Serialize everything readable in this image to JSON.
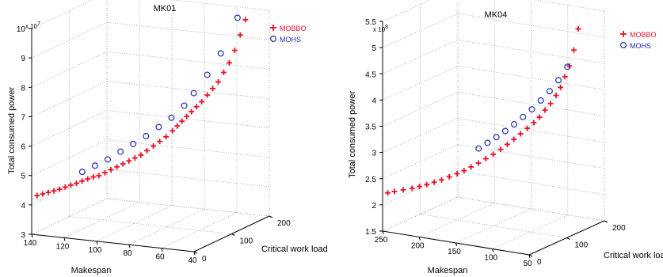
{
  "colors": {
    "mobbo": "#e8132b",
    "mohs": "#1f2ea8",
    "axis": "#000000",
    "grid": "#9a9a9a"
  },
  "chart_data": [
    {
      "type": "scatter",
      "title": "MK01",
      "xlabel": "Makespan",
      "ylabel": "Critical work load",
      "zlabel": "Total consumed power",
      "z_multiplier": "x 10",
      "z_exponent": "7",
      "xlim": [
        40,
        140
      ],
      "ylim": [
        0,
        200
      ],
      "zlim": [
        3,
        10
      ],
      "xticks": [
        "40",
        "60",
        "80",
        "100",
        "120",
        "140"
      ],
      "yticks": [
        "0",
        "100",
        "200"
      ],
      "zticks": [
        "3",
        "4",
        "5",
        "6",
        "7",
        "8",
        "9",
        "10"
      ],
      "grid": true,
      "legend_position": "top-right",
      "series": [
        {
          "name": "MOBBO",
          "marker": "plus",
          "color_key": "mobbo",
          "x": [
            42,
            44,
            46,
            48,
            50,
            52,
            54,
            56,
            58,
            60,
            62,
            64,
            66,
            68,
            70,
            73,
            76,
            79,
            82,
            85,
            88,
            91,
            94,
            97,
            100,
            103,
            106,
            109,
            112,
            115,
            118,
            121,
            124,
            127,
            130,
            133,
            136,
            139
          ],
          "y": [
            145,
            140,
            134,
            128,
            122,
            116,
            110,
            104,
            98,
            93,
            88,
            84,
            80,
            76,
            72,
            68,
            64,
            60,
            56,
            53,
            50,
            47,
            44,
            41,
            38,
            35,
            32,
            30,
            28,
            26,
            24,
            22,
            20,
            18,
            16,
            14,
            12,
            10
          ],
          "z": [
            10.0,
            9.5,
            9.0,
            8.6,
            8.3,
            8.0,
            7.8,
            7.6,
            7.4,
            7.25,
            7.1,
            6.95,
            6.8,
            6.65,
            6.5,
            6.3,
            6.15,
            6.0,
            5.85,
            5.7,
            5.6,
            5.5,
            5.4,
            5.3,
            5.2,
            5.1,
            5.0,
            4.95,
            4.88,
            4.8,
            4.72,
            4.65,
            4.58,
            4.5,
            4.44,
            4.38,
            4.32,
            4.26
          ]
        },
        {
          "name": "MOHS",
          "marker": "circle",
          "color_key": "mohs",
          "x": [
            48,
            56,
            62,
            68,
            72,
            78,
            84,
            90,
            96,
            102,
            108,
            114,
            120
          ],
          "y": [
            150,
            140,
            130,
            120,
            112,
            104,
            96,
            88,
            80,
            72,
            64,
            56,
            48
          ],
          "z": [
            10.0,
            8.8,
            8.1,
            7.5,
            7.1,
            6.7,
            6.4,
            6.1,
            5.85,
            5.6,
            5.35,
            5.15,
            4.95
          ]
        }
      ]
    },
    {
      "type": "scatter",
      "title": "MK04",
      "xlabel": "Makespan",
      "ylabel": "Critical work load",
      "zlabel": "Total consumed power",
      "z_multiplier": "x 10",
      "z_exponent": "8",
      "xlim": [
        50,
        250
      ],
      "ylim": [
        0,
        200
      ],
      "zlim": [
        1.5,
        5.5
      ],
      "xticks": [
        "50",
        "100",
        "150",
        "200",
        "250"
      ],
      "yticks": [
        "0",
        "100",
        "200"
      ],
      "zticks": [
        "1.5",
        "2",
        "2.5",
        "3",
        "3.5",
        "4",
        "4.5",
        "5",
        "5.5"
      ],
      "grid": true,
      "legend_position": "top-right",
      "series": [
        {
          "name": "MOBBO",
          "marker": "plus",
          "color_key": "mobbo",
          "x": [
            60,
            64,
            68,
            72,
            76,
            80,
            85,
            90,
            95,
            100,
            106,
            112,
            118,
            124,
            130,
            137,
            144,
            151,
            158,
            165,
            172,
            180,
            188,
            196,
            204,
            212,
            220,
            230,
            240,
            248
          ],
          "y": [
            150,
            146,
            142,
            138,
            134,
            130,
            125,
            120,
            115,
            110,
            104,
            98,
            92,
            86,
            80,
            74,
            68,
            62,
            56,
            51,
            46,
            41,
            36,
            32,
            28,
            24,
            20,
            16,
            12,
            10
          ],
          "z": [
            5.3,
            4.9,
            4.6,
            4.4,
            4.2,
            4.05,
            3.9,
            3.78,
            3.65,
            3.55,
            3.45,
            3.35,
            3.25,
            3.16,
            3.07,
            2.98,
            2.9,
            2.82,
            2.75,
            2.68,
            2.62,
            2.56,
            2.5,
            2.45,
            2.4,
            2.36,
            2.32,
            2.28,
            2.24,
            2.2
          ]
        },
        {
          "name": "MOHS",
          "marker": "circle",
          "color_key": "mohs",
          "x": [
            80,
            88,
            96,
            104,
            112,
            120,
            128,
            136,
            144,
            152,
            160
          ],
          "y": [
            160,
            152,
            144,
            136,
            128,
            120,
            112,
            104,
            96,
            88,
            80
          ],
          "z": [
            4.5,
            4.25,
            4.05,
            3.88,
            3.72,
            3.58,
            3.45,
            3.33,
            3.22,
            3.12,
            3.02
          ]
        }
      ]
    }
  ]
}
